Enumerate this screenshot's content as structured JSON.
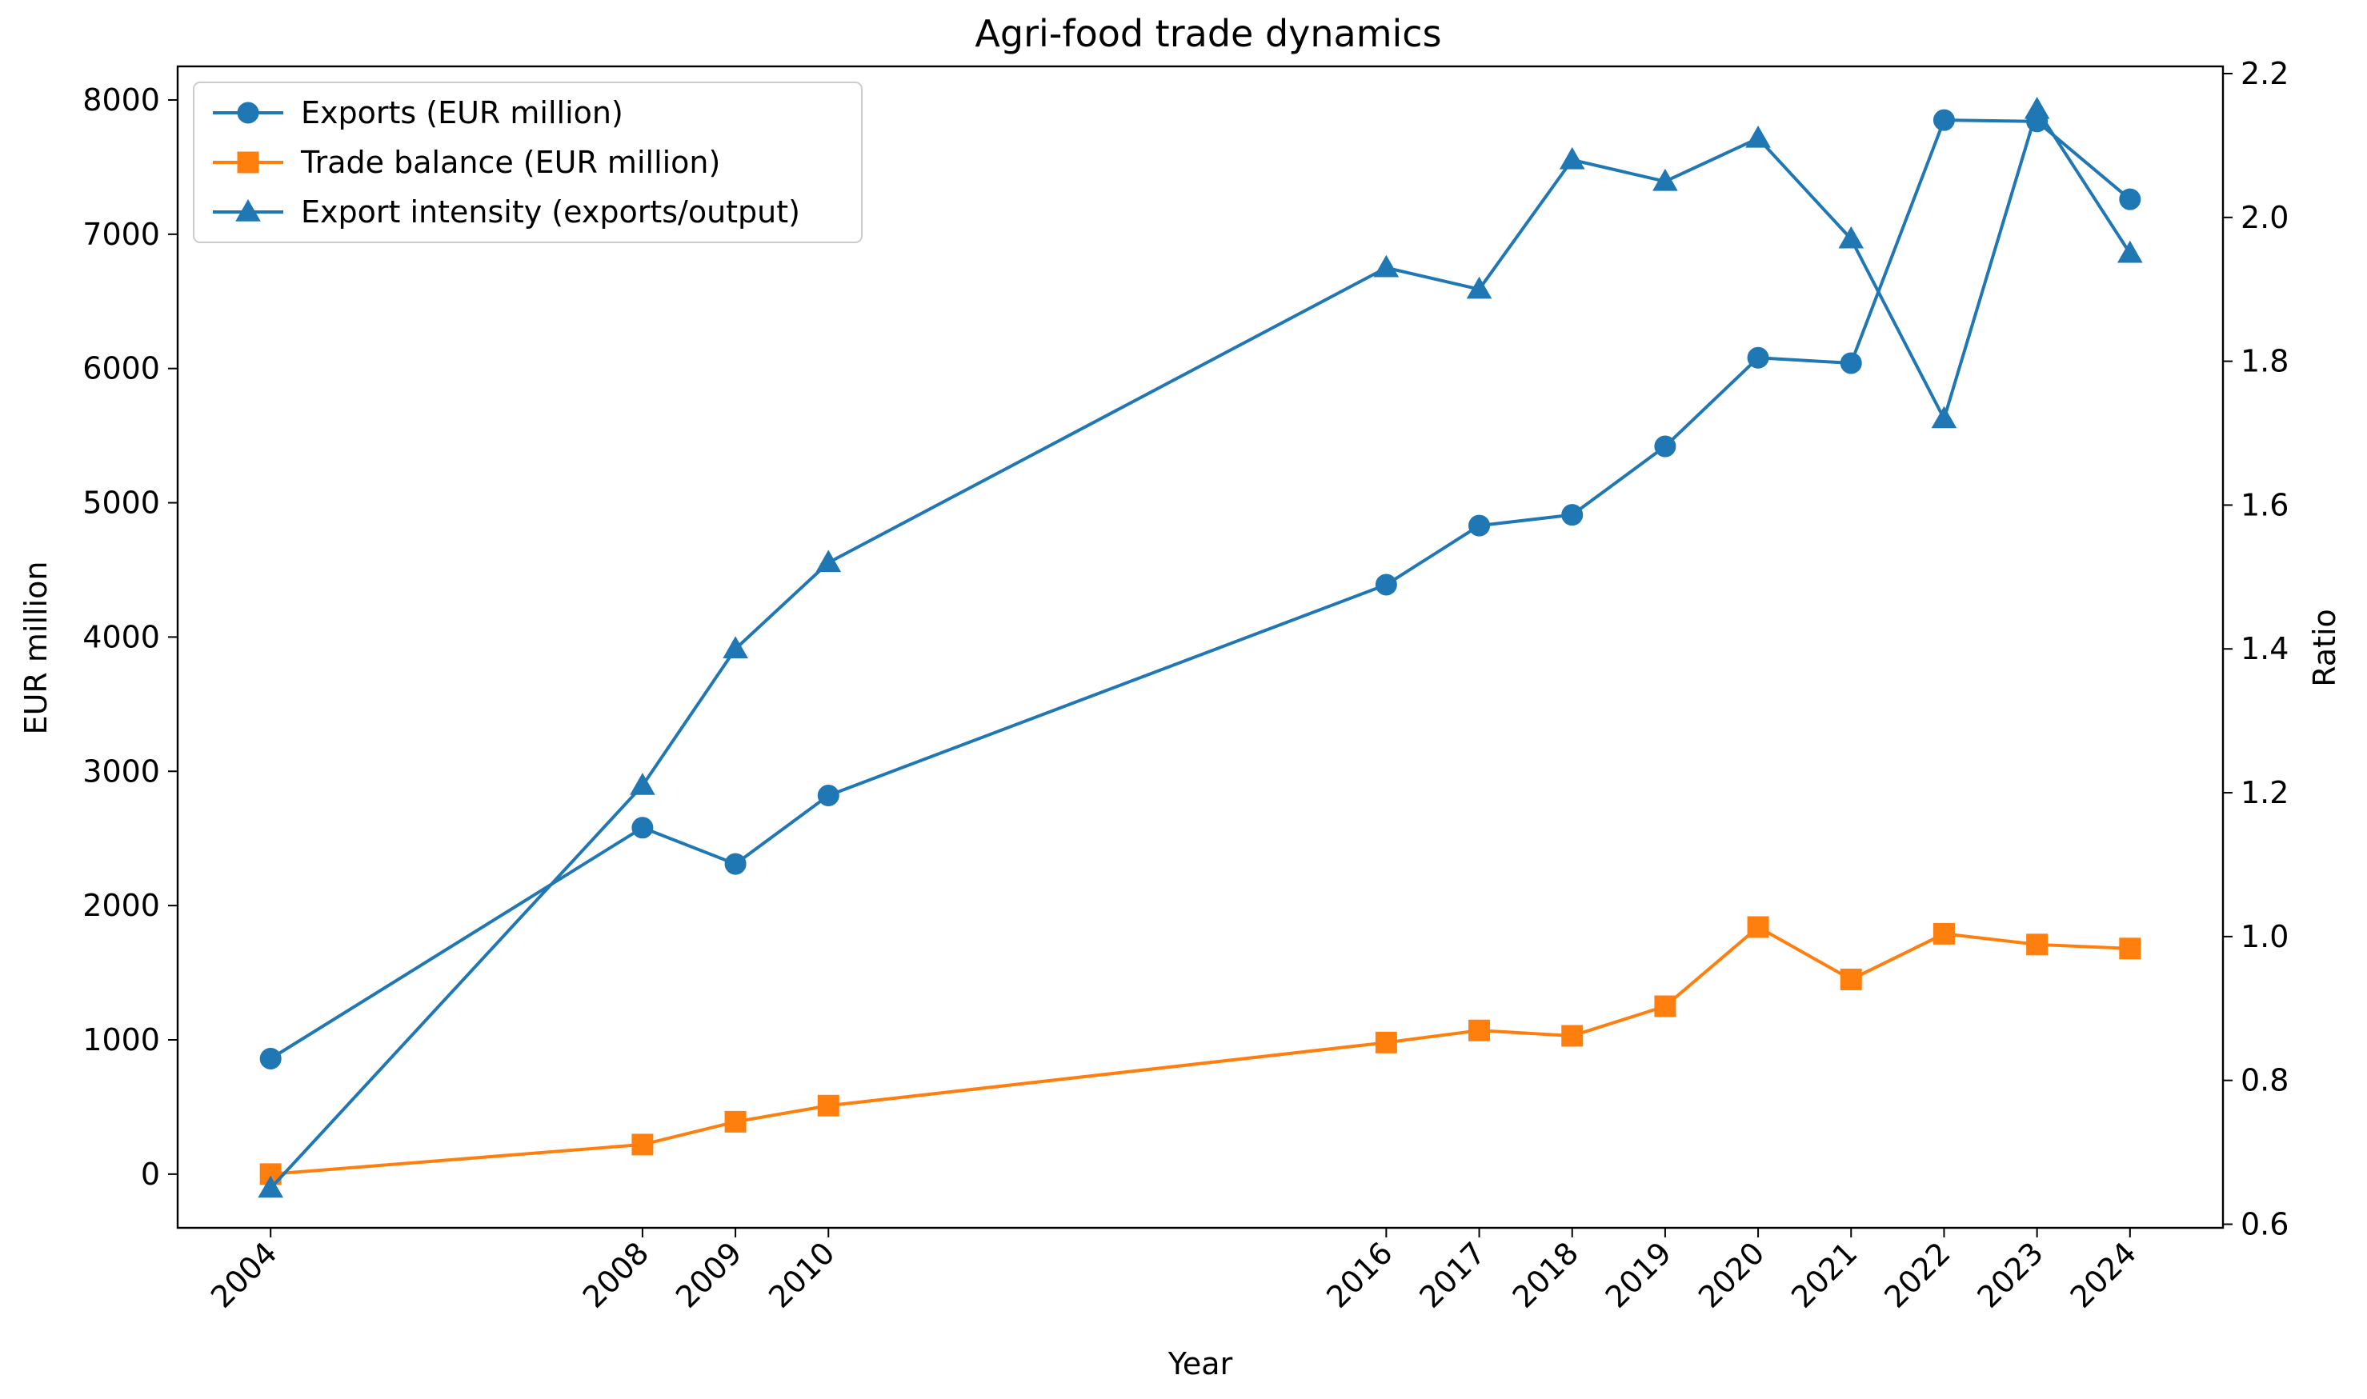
{
  "chart_data": {
    "type": "line",
    "title": "Agri-food trade dynamics",
    "xlabel": "Year",
    "ylabel": "EUR million",
    "y2label": "Ratio",
    "categories": [
      "2004",
      "2008",
      "2009",
      "2010",
      "2016",
      "2017",
      "2018",
      "2019",
      "2020",
      "2021",
      "2022",
      "2023",
      "2024"
    ],
    "x": [
      2004,
      2008,
      2009,
      2010,
      2016,
      2017,
      2018,
      2019,
      2020,
      2021,
      2022,
      2023,
      2024
    ],
    "xlim": [
      2003.0,
      2025.0
    ],
    "ylim": [
      -400,
      8250
    ],
    "y2lim": [
      0.595,
      2.21
    ],
    "yticks": [
      0,
      1000,
      2000,
      3000,
      4000,
      5000,
      6000,
      7000,
      8000
    ],
    "y2ticks": [
      0.6,
      0.8,
      1.0,
      1.2,
      1.4,
      1.6,
      1.8,
      2.0,
      2.2
    ],
    "y2tick_labels": [
      "0.6",
      "0.8",
      "1.0",
      "1.2",
      "1.4",
      "1.6",
      "1.8",
      "2.0",
      "2.2"
    ],
    "grid": false,
    "legend_position": "upper-left",
    "series": [
      {
        "name": "Exports (EUR million)",
        "axis": "left",
        "marker": "circle",
        "color": "#1f77b4",
        "values": [
          860,
          2580,
          2310,
          2820,
          4390,
          4830,
          4910,
          5420,
          6080,
          6040,
          7850,
          7840,
          7260
        ]
      },
      {
        "name": "Trade balance (EUR million)",
        "axis": "left",
        "marker": "square",
        "color": "#ff7f0e",
        "values": [
          0,
          220,
          390,
          510,
          980,
          1070,
          1030,
          1250,
          1840,
          1450,
          1790,
          1710,
          1680
        ]
      },
      {
        "name": "Export intensity (exports/output)",
        "axis": "right",
        "marker": "triangle",
        "color": "#1f77b4",
        "values": [
          0.65,
          1.21,
          1.4,
          1.52,
          1.93,
          1.9,
          2.08,
          2.05,
          2.11,
          1.97,
          1.72,
          2.15,
          1.95
        ]
      }
    ]
  }
}
